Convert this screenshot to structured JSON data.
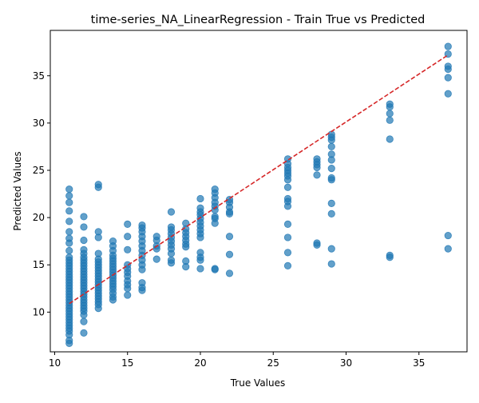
{
  "chart_data": {
    "type": "scatter",
    "title": "time-series_NA_LinearRegression - Train True vs Predicted",
    "xlabel": "True Values",
    "ylabel": "Predicted Values",
    "xlim": [
      9.7,
      38.3
    ],
    "ylim": [
      5.8,
      39.8
    ],
    "xticks": [
      10,
      15,
      20,
      25,
      30,
      35
    ],
    "yticks": [
      10,
      15,
      20,
      25,
      30,
      35
    ],
    "grid": false,
    "legend": "none",
    "colors": {
      "points": "#1f77b4",
      "fit_line": "#d62728"
    },
    "fit_line": {
      "style": "dashed",
      "x": [
        11,
        37
      ],
      "y": [
        10.9,
        37.2
      ]
    },
    "series": [
      {
        "points": [
          [
            11,
            6.7
          ],
          [
            11,
            7.0
          ],
          [
            11,
            7.6
          ],
          [
            11,
            8.0
          ],
          [
            11,
            8.3
          ],
          [
            11,
            8.6
          ],
          [
            11,
            8.9
          ],
          [
            11,
            9.2
          ],
          [
            11,
            9.5
          ],
          [
            11,
            9.8
          ],
          [
            11,
            10.1
          ],
          [
            11,
            10.4
          ],
          [
            11,
            10.7
          ],
          [
            11,
            11.0
          ],
          [
            11,
            11.3
          ],
          [
            11,
            11.6
          ],
          [
            11,
            11.9
          ],
          [
            11,
            12.2
          ],
          [
            11,
            12.5
          ],
          [
            11,
            12.8
          ],
          [
            11,
            13.1
          ],
          [
            11,
            13.4
          ],
          [
            11,
            13.7
          ],
          [
            11,
            14.0
          ],
          [
            11,
            14.3
          ],
          [
            11,
            14.6
          ],
          [
            11,
            14.9
          ],
          [
            11,
            15.2
          ],
          [
            11,
            15.5
          ],
          [
            11,
            15.8
          ],
          [
            11,
            16.5
          ],
          [
            11,
            17.3
          ],
          [
            11,
            17.8
          ],
          [
            11,
            18.5
          ],
          [
            11,
            19.6
          ],
          [
            11,
            20.7
          ],
          [
            11,
            21.6
          ],
          [
            11,
            22.3
          ],
          [
            11,
            23.0
          ],
          [
            12,
            7.8
          ],
          [
            12,
            9.0
          ],
          [
            12,
            9.7
          ],
          [
            12,
            10.1
          ],
          [
            12,
            10.4
          ],
          [
            12,
            10.7
          ],
          [
            12,
            11.0
          ],
          [
            12,
            11.3
          ],
          [
            12,
            11.6
          ],
          [
            12,
            11.9
          ],
          [
            12,
            12.2
          ],
          [
            12,
            12.5
          ],
          [
            12,
            12.8
          ],
          [
            12,
            13.1
          ],
          [
            12,
            13.4
          ],
          [
            12,
            13.7
          ],
          [
            12,
            14.0
          ],
          [
            12,
            14.3
          ],
          [
            12,
            14.6
          ],
          [
            12,
            14.9
          ],
          [
            12,
            15.2
          ],
          [
            12,
            15.5
          ],
          [
            12,
            15.8
          ],
          [
            12,
            16.2
          ],
          [
            12,
            16.6
          ],
          [
            12,
            17.6
          ],
          [
            12,
            19.0
          ],
          [
            12,
            20.1
          ],
          [
            13,
            10.4
          ],
          [
            13,
            10.8
          ],
          [
            13,
            11.1
          ],
          [
            13,
            11.4
          ],
          [
            13,
            11.7
          ],
          [
            13,
            12.0
          ],
          [
            13,
            12.3
          ],
          [
            13,
            12.6
          ],
          [
            13,
            12.9
          ],
          [
            13,
            13.2
          ],
          [
            13,
            13.5
          ],
          [
            13,
            13.8
          ],
          [
            13,
            14.1
          ],
          [
            13,
            14.4
          ],
          [
            13,
            14.7
          ],
          [
            13,
            15.0
          ],
          [
            13,
            15.3
          ],
          [
            13,
            15.6
          ],
          [
            13,
            16.2
          ],
          [
            13,
            17.9
          ],
          [
            13,
            18.5
          ],
          [
            13,
            23.2
          ],
          [
            13,
            23.5
          ],
          [
            14,
            11.3
          ],
          [
            14,
            11.6
          ],
          [
            14,
            12.0
          ],
          [
            14,
            12.4
          ],
          [
            14,
            12.7
          ],
          [
            14,
            13.0
          ],
          [
            14,
            13.3
          ],
          [
            14,
            13.6
          ],
          [
            14,
            13.9
          ],
          [
            14,
            14.2
          ],
          [
            14,
            14.5
          ],
          [
            14,
            14.8
          ],
          [
            14,
            15.1
          ],
          [
            14,
            15.4
          ],
          [
            14,
            15.7
          ],
          [
            14,
            16.0
          ],
          [
            14,
            16.5
          ],
          [
            14,
            17.0
          ],
          [
            14,
            17.5
          ],
          [
            15,
            11.8
          ],
          [
            15,
            12.5
          ],
          [
            15,
            12.9
          ],
          [
            15,
            13.3
          ],
          [
            15,
            13.8
          ],
          [
            15,
            14.2
          ],
          [
            15,
            14.6
          ],
          [
            15,
            15.0
          ],
          [
            15,
            16.6
          ],
          [
            15,
            18.0
          ],
          [
            15,
            19.3
          ],
          [
            16,
            12.3
          ],
          [
            16,
            12.6
          ],
          [
            16,
            13.1
          ],
          [
            16,
            14.5
          ],
          [
            16,
            15.0
          ],
          [
            16,
            15.5
          ],
          [
            16,
            16.0
          ],
          [
            16,
            16.5
          ],
          [
            16,
            17.0
          ],
          [
            16,
            17.5
          ],
          [
            16,
            18.0
          ],
          [
            16,
            18.5
          ],
          [
            16,
            18.9
          ],
          [
            16,
            19.2
          ],
          [
            17,
            15.6
          ],
          [
            17,
            16.7
          ],
          [
            17,
            17.0
          ],
          [
            17,
            17.6
          ],
          [
            17,
            18.0
          ],
          [
            18,
            15.2
          ],
          [
            18,
            15.5
          ],
          [
            18,
            16.2
          ],
          [
            18,
            16.7
          ],
          [
            18,
            17.1
          ],
          [
            18,
            17.5
          ],
          [
            18,
            17.9
          ],
          [
            18,
            18.3
          ],
          [
            18,
            18.7
          ],
          [
            18,
            19.0
          ],
          [
            18,
            20.6
          ],
          [
            19,
            14.8
          ],
          [
            19,
            15.4
          ],
          [
            19,
            16.9
          ],
          [
            19,
            17.2
          ],
          [
            19,
            17.6
          ],
          [
            19,
            18.0
          ],
          [
            19,
            18.4
          ],
          [
            19,
            18.8
          ],
          [
            19,
            19.4
          ],
          [
            20,
            14.6
          ],
          [
            20,
            15.5
          ],
          [
            20,
            15.8
          ],
          [
            20,
            16.3
          ],
          [
            20,
            17.9
          ],
          [
            20,
            18.3
          ],
          [
            20,
            18.7
          ],
          [
            20,
            19.1
          ],
          [
            20,
            19.5
          ],
          [
            20,
            19.9
          ],
          [
            20,
            20.3
          ],
          [
            20,
            20.6
          ],
          [
            20,
            21.0
          ],
          [
            20,
            22.0
          ],
          [
            21,
            14.5
          ],
          [
            21,
            14.6
          ],
          [
            21,
            19.4
          ],
          [
            21,
            19.9
          ],
          [
            21,
            20.1
          ],
          [
            21,
            20.8
          ],
          [
            21,
            21.2
          ],
          [
            21,
            21.6
          ],
          [
            21,
            22.1
          ],
          [
            21,
            22.6
          ],
          [
            21,
            23.0
          ],
          [
            22,
            14.1
          ],
          [
            22,
            16.1
          ],
          [
            22,
            18.0
          ],
          [
            22,
            20.4
          ],
          [
            22,
            20.6
          ],
          [
            22,
            21.1
          ],
          [
            22,
            21.6
          ],
          [
            22,
            21.9
          ],
          [
            26,
            14.9
          ],
          [
            26,
            16.3
          ],
          [
            26,
            17.9
          ],
          [
            26,
            19.3
          ],
          [
            26,
            21.2
          ],
          [
            26,
            21.7
          ],
          [
            26,
            22.0
          ],
          [
            26,
            23.2
          ],
          [
            26,
            24.0
          ],
          [
            26,
            24.4
          ],
          [
            26,
            24.7
          ],
          [
            26,
            25.0
          ],
          [
            26,
            25.3
          ],
          [
            26,
            25.7
          ],
          [
            26,
            26.2
          ],
          [
            28,
            17.1
          ],
          [
            28,
            17.3
          ],
          [
            28,
            24.5
          ],
          [
            28,
            25.3
          ],
          [
            28,
            25.6
          ],
          [
            28,
            25.9
          ],
          [
            28,
            26.2
          ],
          [
            29,
            15.1
          ],
          [
            29,
            16.7
          ],
          [
            29,
            20.4
          ],
          [
            29,
            21.5
          ],
          [
            29,
            24.0
          ],
          [
            29,
            24.2
          ],
          [
            29,
            25.2
          ],
          [
            29,
            26.1
          ],
          [
            29,
            26.7
          ],
          [
            29,
            27.5
          ],
          [
            29,
            28.2
          ],
          [
            29,
            28.5
          ],
          [
            29,
            28.8
          ],
          [
            33,
            15.8
          ],
          [
            33,
            16.0
          ],
          [
            33,
            28.3
          ],
          [
            33,
            30.3
          ],
          [
            33,
            31.0
          ],
          [
            33,
            31.7
          ],
          [
            33,
            32.0
          ],
          [
            37,
            16.7
          ],
          [
            37,
            18.1
          ],
          [
            37,
            33.1
          ],
          [
            37,
            34.8
          ],
          [
            37,
            35.7
          ],
          [
            37,
            36.0
          ],
          [
            37,
            37.3
          ],
          [
            37,
            38.1
          ]
        ]
      }
    ]
  }
}
